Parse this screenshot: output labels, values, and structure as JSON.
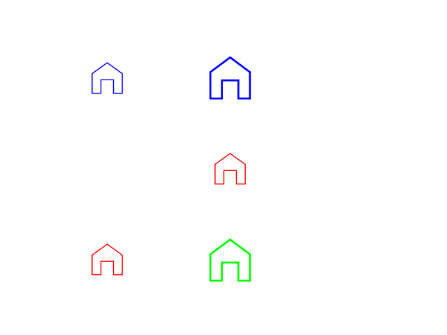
{
  "icons": [
    {
      "name": "home-icon",
      "color": "#0000ff"
    },
    {
      "name": "home-icon",
      "color": "#0000ff"
    },
    {
      "name": "home-icon",
      "color": "#ff0000"
    },
    {
      "name": "home-icon",
      "color": "#ff0000"
    },
    {
      "name": "home-icon",
      "color": "#00ff00"
    }
  ]
}
